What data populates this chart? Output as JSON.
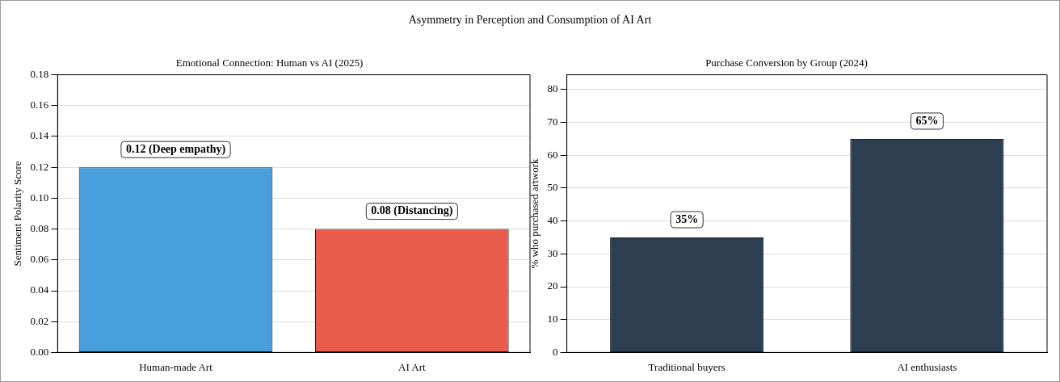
{
  "chart_data": [
    {
      "type": "bar",
      "title": "Emotional Connection: Human vs AI (2025)",
      "ylabel": "Sentiment Polarity Score",
      "annotations": [
        "Asymmetry in Perception and Consumption of AI Art"
      ],
      "categories": [
        "Human-made Art",
        "AI Art"
      ],
      "values": [
        0.12,
        0.08
      ],
      "colors": [
        "#489fdc",
        "#e95c4c"
      ],
      "value_labels": [
        "0.12 (Deep empathy)",
        "0.08 (Distancing)"
      ],
      "ylim": [
        0,
        0.18
      ],
      "yticks": [
        {
          "value": 0,
          "label": "0.00"
        },
        {
          "value": 0.02,
          "label": "0.02"
        },
        {
          "value": 0.04,
          "label": "0.04"
        },
        {
          "value": 0.06,
          "label": "0.06"
        },
        {
          "value": 0.08,
          "label": "0.08"
        },
        {
          "value": 0.1,
          "label": "0.10"
        },
        {
          "value": 0.12,
          "label": "0.12"
        },
        {
          "value": 0.14,
          "label": "0.14"
        },
        {
          "value": 0.16,
          "label": "0.16"
        },
        {
          "value": 0.18,
          "label": "0.18"
        }
      ],
      "grid": "y"
    },
    {
      "type": "bar",
      "title": "Purchase Conversion by Group (2024)",
      "ylabel": "% who purchased artwork",
      "categories": [
        "Traditional buyers",
        "AI enthusiasts"
      ],
      "values": [
        35,
        65
      ],
      "colors": [
        "#2c3e50",
        "#2c3e50"
      ],
      "value_labels": [
        "35%",
        "65%"
      ],
      "ylim": [
        0,
        84.5
      ],
      "yticks": [
        0,
        10,
        20,
        30,
        40,
        50,
        60,
        70,
        80
      ],
      "grid": "y"
    }
  ]
}
